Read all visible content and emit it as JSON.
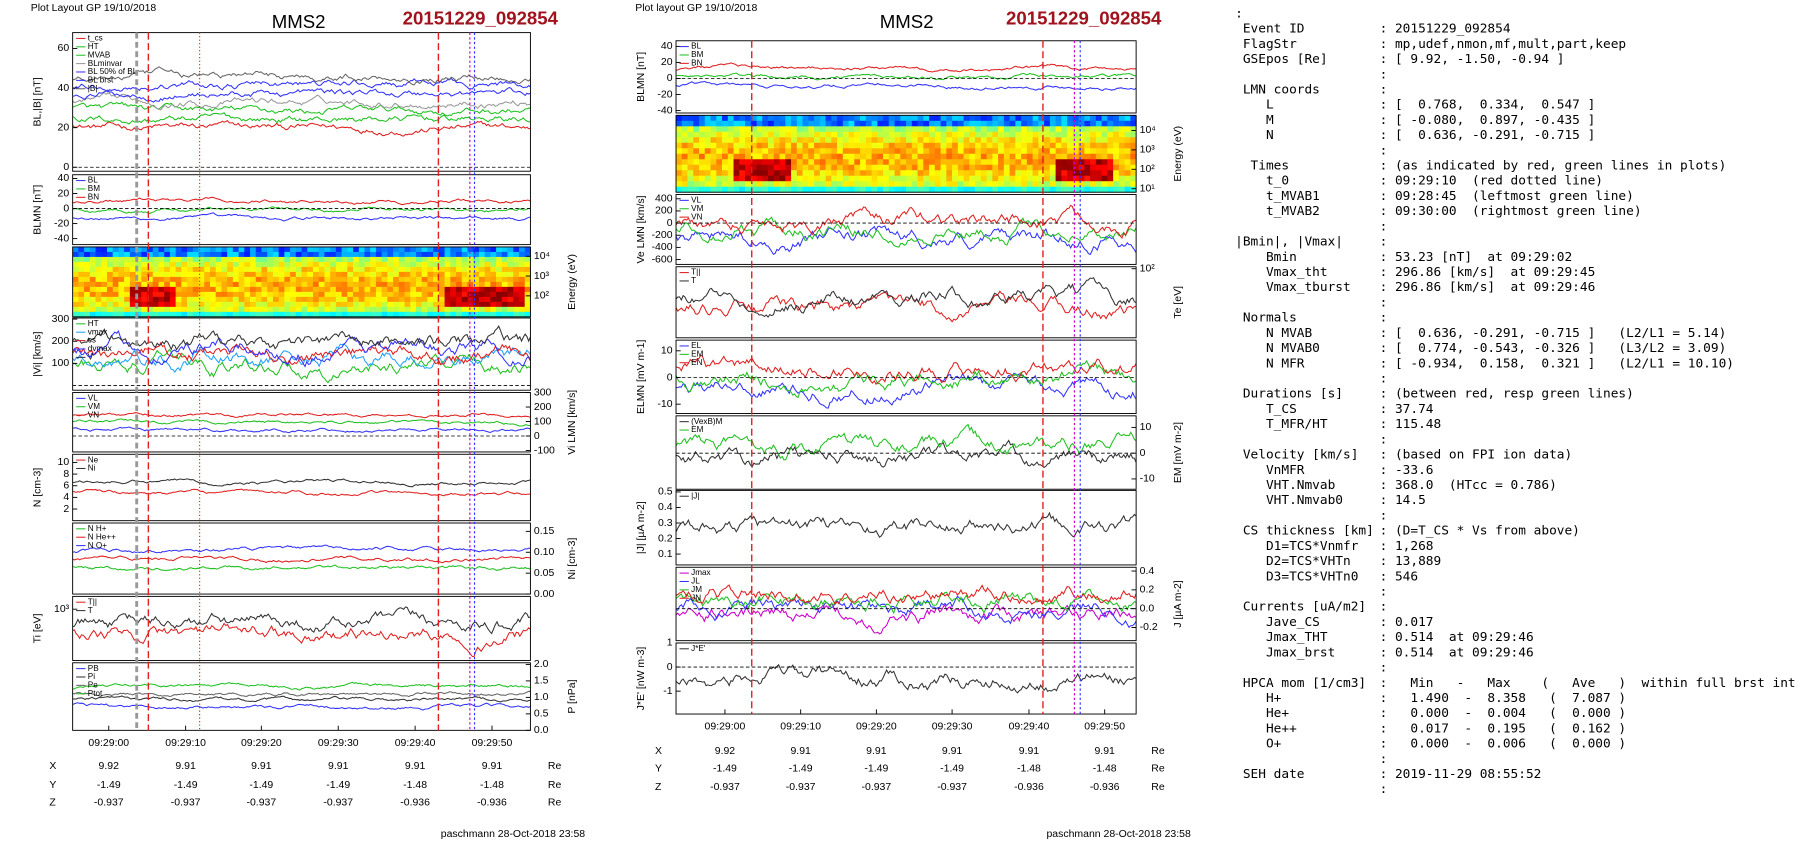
{
  "left": {
    "header": "Plot Layout GP 19/10/2018",
    "title": "MMS2",
    "event": "20151229_092854",
    "panels": [
      {
        "kind": "line",
        "side": "left",
        "ylabel": "BL,|B| [nT]",
        "ylim": [
          -2,
          68
        ],
        "yticks": [
          0,
          20,
          40,
          60
        ],
        "legend": [
          {
            "name": "t_cs",
            "color": "#e02020"
          },
          {
            "name": "HT",
            "color": "#20c020"
          },
          {
            "name": "MVAB",
            "color": "#20c020"
          },
          {
            "name": "BLminvar",
            "color": "#999999"
          },
          {
            "name": "BL 50% of BL",
            "color": "#3333ff"
          },
          {
            "name": "BL brst",
            "color": "#3333ff"
          },
          {
            "name": "|B|",
            "color": "#666666"
          }
        ]
      },
      {
        "kind": "line",
        "side": "left",
        "ylabel": "BLMN [nT]",
        "ylim": [
          -48,
          45
        ],
        "yticks": [
          -40,
          -20,
          0,
          20,
          40
        ],
        "legend": [
          {
            "name": "BL",
            "color": "#3333ff"
          },
          {
            "name": "BM",
            "color": "#20c020"
          },
          {
            "name": "BN",
            "color": "#e02020"
          }
        ]
      },
      {
        "kind": "spectrogram",
        "side": "right",
        "ylabel": "Energy (eV)",
        "ylim": [
          0.94,
          4.47
        ],
        "yticks": [
          {
            "value": 2,
            "label": "10²"
          },
          {
            "value": 3,
            "label": "10³"
          },
          {
            "value": 4,
            "label": "10⁴"
          }
        ],
        "legend": []
      },
      {
        "kind": "line",
        "side": "left",
        "ylabel": "|Vi| [km/s]",
        "ylim": [
          -21,
          305
        ],
        "yticks": [
          100,
          200,
          300
        ],
        "legend": [
          {
            "name": "HT",
            "color": "#20c020"
          },
          {
            "name": "vmax",
            "color": "#20a0ff"
          },
          {
            "name": "cs",
            "color": "#e02020"
          },
          {
            "name": "dvmax",
            "color": "#3333ff"
          },
          {
            "name": "V",
            "color": "#333333"
          }
        ]
      },
      {
        "kind": "line",
        "side": "right",
        "ylabel": "Vi LMN [km/s]",
        "ylim": [
          -110,
          300
        ],
        "yticks": [
          -100,
          0,
          100,
          200,
          300
        ],
        "legend": [
          {
            "name": "VL",
            "color": "#3333ff"
          },
          {
            "name": "VM",
            "color": "#20c020"
          },
          {
            "name": "VN",
            "color": "#e02020"
          }
        ]
      },
      {
        "kind": "line",
        "side": "left",
        "ylabel": "N [cm-3]",
        "ylim": [
          0,
          11.4
        ],
        "yticks": [
          2,
          4,
          6,
          8,
          10
        ],
        "legend": [
          {
            "name": "Ne",
            "color": "#e02020"
          },
          {
            "name": "Ni",
            "color": "#333333"
          }
        ]
      },
      {
        "kind": "line",
        "side": "right",
        "ylabel": "Ni [cm-3]",
        "ylim": [
          0,
          0.17
        ],
        "yticks": [
          {
            "value": 0,
            "label": "0.00"
          },
          0.05,
          {
            "value": 0.1,
            "label": "0.10"
          },
          0.15
        ],
        "legend": [
          {
            "name": "N H+",
            "color": "#20c020"
          },
          {
            "name": "N He++",
            "color": "#e02020"
          },
          {
            "name": "N O+",
            "color": "#3333ff"
          }
        ]
      },
      {
        "kind": "line",
        "side": "left",
        "ylabel": "Ti [eV]",
        "ylim": [
          2.2,
          3.2
        ],
        "yticks": [
          {
            "value": 3,
            "label": "10³"
          }
        ],
        "legend": [
          {
            "name": "T||",
            "color": "#e02020"
          },
          {
            "name": "T",
            "color": "#333333"
          }
        ]
      },
      {
        "kind": "line",
        "side": "right",
        "ylabel": "P [nPa]",
        "ylim": [
          0,
          2.05
        ],
        "yticks": [
          {
            "value": 0,
            "label": "0.0"
          },
          0.5,
          {
            "value": 1,
            "label": "1.0"
          },
          1.5,
          {
            "value": 2,
            "label": "2.0"
          }
        ],
        "legend": [
          {
            "name": "PB",
            "color": "#3333ff"
          },
          {
            "name": "Pi",
            "color": "#333333"
          },
          {
            "name": "Pe",
            "color": "#666666"
          },
          {
            "name": "Ptot",
            "color": "#20c020"
          }
        ]
      }
    ],
    "xticks": [
      "09:29:00",
      "09:29:10",
      "09:29:20",
      "09:29:30",
      "09:29:40",
      "09:29:50"
    ],
    "coords": [
      [
        "X",
        "9.92",
        "9.91",
        "9.91",
        "9.91",
        "9.91",
        "9.91",
        "Re"
      ],
      [
        "Y",
        "-1.49",
        "-1.49",
        "-1.49",
        "-1.49",
        "-1.48",
        "-1.48",
        "Re"
      ],
      [
        "Z",
        "-0.937",
        "-0.937",
        "-0.937",
        "-0.937",
        "-0.936",
        "-0.936",
        "Re"
      ]
    ],
    "footer": "paschmann 28-Oct-2018 23:58"
  },
  "middle": {
    "header": "Plot layout GP 19/10/2018",
    "title": "MMS2",
    "event": "20151229_092854",
    "panels": [
      {
        "kind": "line",
        "side": "left",
        "ylabel": "BLMN [nT]",
        "ylim": [
          -43,
          47
        ],
        "yticks": [
          -40,
          -20,
          0,
          20,
          40
        ],
        "legend": [
          {
            "name": "BL",
            "color": "#3333ff"
          },
          {
            "name": "BM",
            "color": "#20c020"
          },
          {
            "name": "BN",
            "color": "#e02020"
          }
        ]
      },
      {
        "kind": "spectrogram",
        "side": "right",
        "ylabel": "Energy (eV)",
        "ylim": [
          0.82,
          4.78
        ],
        "yticks": [
          {
            "value": 1,
            "label": "10¹"
          },
          {
            "value": 2,
            "label": "10²"
          },
          {
            "value": 3,
            "label": "10³"
          },
          {
            "value": 4,
            "label": "10⁴"
          }
        ],
        "legend": []
      },
      {
        "kind": "line",
        "side": "left",
        "ylabel": "Ve LMN [km/s]",
        "ylim": [
          -680,
          470
        ],
        "yticks": [
          -600,
          -400,
          -200,
          0,
          200,
          400
        ],
        "legend": [
          {
            "name": "VL",
            "color": "#3333ff"
          },
          {
            "name": "VM",
            "color": "#20c020"
          },
          {
            "name": "VN",
            "color": "#e02020"
          }
        ]
      },
      {
        "kind": "line",
        "side": "right",
        "ylabel": "Te [eV]",
        "ylim": [
          1.3,
          2.02
        ],
        "yticks": [
          {
            "value": 2,
            "label": "10²"
          }
        ],
        "legend": [
          {
            "name": "T||",
            "color": "#e02020"
          },
          {
            "name": "T",
            "color": "#333333"
          }
        ]
      },
      {
        "kind": "line",
        "side": "left",
        "ylabel": "ELMN [mV m-1]",
        "ylim": [
          -13.5,
          14
        ],
        "yticks": [
          -10,
          0,
          10
        ],
        "legend": [
          {
            "name": "EL",
            "color": "#3333ff"
          },
          {
            "name": "EM",
            "color": "#20c020"
          },
          {
            "name": "EN",
            "color": "#e02020"
          }
        ]
      },
      {
        "kind": "line",
        "side": "right",
        "ylabel": "EM [mV m-2]",
        "ylim": [
          -14,
          14.5
        ],
        "yticks": [
          -10,
          0,
          10
        ],
        "legend": [
          {
            "name": "(VexB)M",
            "color": "#333333"
          },
          {
            "name": "EM",
            "color": "#20c020"
          }
        ]
      },
      {
        "kind": "line",
        "side": "left",
        "ylabel": "|J| [µA m-2]",
        "ylim": [
          0.03,
          0.51
        ],
        "yticks": [
          0.1,
          0.2,
          0.3,
          0.4,
          0.5
        ],
        "legend": [
          {
            "name": "|J|",
            "color": "#333333"
          }
        ]
      },
      {
        "kind": "line",
        "side": "right",
        "ylabel": "J [µA m-2]",
        "ylim": [
          -0.34,
          0.44
        ],
        "yticks": [
          -0.2,
          {
            "value": 0,
            "label": "0.0"
          },
          0.2,
          0.4
        ],
        "legend": [
          {
            "name": "Jmax",
            "color": "#cc00cc"
          },
          {
            "name": "JL",
            "color": "#3333ff"
          },
          {
            "name": "JM",
            "color": "#20c020"
          },
          {
            "name": "JN",
            "color": "#e02020"
          }
        ]
      },
      {
        "kind": "line",
        "side": "left",
        "ylabel": "J*E' [nW m-3]",
        "ylim": [
          -1.95,
          1
        ],
        "yticks": [
          -1,
          0,
          1
        ],
        "legend": [
          {
            "name": "J*E'",
            "color": "#333333"
          }
        ]
      }
    ],
    "xticks": [
      "09:29:00",
      "09:29:10",
      "09:29:20",
      "09:29:30",
      "09:29:40",
      "09:29:50"
    ],
    "coords": [
      [
        "X",
        "9.92",
        "9.91",
        "9.91",
        "9.91",
        "9.91",
        "9.91",
        "Re"
      ],
      [
        "Y",
        "-1.49",
        "-1.49",
        "-1.49",
        "-1.49",
        "-1.48",
        "-1.48",
        "Re"
      ],
      [
        "Z",
        "-0.937",
        "-0.937",
        "-0.937",
        "-0.937",
        "-0.936",
        "-0.936",
        "Re"
      ]
    ],
    "footer": "paschmann 28-Oct-2018 23:58"
  },
  "info": {
    "lead": ":",
    "lines": [
      {
        "label": " Event ID",
        "value": ": 20151229_092854"
      },
      {
        "label": " FlagStr",
        "value": ": mp,udef,nmon,mf,mult,part,keep"
      },
      {
        "label": " GSEpos [Re]",
        "value": ": [ 9.92, -1.50, -0.94 ]"
      },
      {
        "value": ":"
      },
      {
        "label": " LMN coords",
        "value": ":"
      },
      {
        "label": "    L",
        "value": ": [  0.768,  0.334,  0.547 ]"
      },
      {
        "label": "    M",
        "value": ": [ -0.080,  0.897, -0.435 ]"
      },
      {
        "label": "    N",
        "value": ": [  0.636, -0.291, -0.715 ]"
      },
      {
        "value": ":"
      },
      {
        "label": "  Times",
        "value": ": (as indicated by red, green lines in plots)"
      },
      {
        "label": "    t_0",
        "value": ": 09:29:10  (red dotted line)"
      },
      {
        "label": "    t_MVAB1",
        "value": ": 09:28:45  (leftmost green line)"
      },
      {
        "label": "    t_MVAB2",
        "value": ": 09:30:00  (rightmost green line)"
      },
      {
        "value": ":"
      },
      {
        "label": "|Bmin|, |Vmax|",
        "value": ":"
      },
      {
        "label": "    Bmin",
        "value": ": 53.23 [nT]  at 09:29:02"
      },
      {
        "label": "    Vmax_tht",
        "value": ": 296.86 [km/s]  at 09:29:45"
      },
      {
        "label": "    Vmax_tburst",
        "value": ": 296.86 [km/s]  at 09:29:46"
      },
      {
        "value": ":"
      },
      {
        "label": " Normals",
        "value": ":"
      },
      {
        "label": "    N MVAB",
        "value": ": [  0.636, -0.291, -0.715 ]   (L2/L1 = 5.14)"
      },
      {
        "label": "    N MVAB0",
        "value": ": [  0.774, -0.543, -0.326 ]   (L3/L2 = 3.09)"
      },
      {
        "label": "    N MFR",
        "value": ": [ -0.934,  0.158,  0.321 ]   (L2/L1 = 10.10)"
      },
      {
        "value": ":"
      },
      {
        "label": " Durations [s]",
        "value": ": (between red, resp green lines)"
      },
      {
        "label": "    T_CS",
        "value": ": 37.74"
      },
      {
        "label": "    T_MFR/HT",
        "value": ": 115.48"
      },
      {
        "value": ":"
      },
      {
        "label": " Velocity [km/s]",
        "value": ": (based on FPI ion data)"
      },
      {
        "label": "    VnMFR",
        "value": ": -33.6"
      },
      {
        "label": "    VHT.Nmvab",
        "value": ": 368.0  (HTcc = 0.786)"
      },
      {
        "label": "    VHT.Nmvab0",
        "value": ": 14.5"
      },
      {
        "value": ":"
      },
      {
        "label": " CS thickness [km]",
        "value": ": (D=T_CS * Vs from above)"
      },
      {
        "label": "    D1=TCS*Vnmfr",
        "value": ": 1,268"
      },
      {
        "label": "    D2=TCS*VHTn",
        "value": ": 13,889"
      },
      {
        "label": "    D3=TCS*VHTn0",
        "value": ": 546"
      },
      {
        "value": ":"
      },
      {
        "label": " Currents [uA/m2]",
        "value": ":"
      },
      {
        "label": "    Jave_CS",
        "value": ": 0.017"
      },
      {
        "label": "    Jmax_THT",
        "value": ": 0.514  at 09:29:46"
      },
      {
        "label": "    Jmax_brst",
        "value": ": 0.514  at 09:29:46"
      },
      {
        "value": ":"
      },
      {
        "label": " HPCA mom [1/cm3]",
        "value": ":   Min   -   Max    (   Ave   )  within full brst int"
      },
      {
        "label": "    H+",
        "value": ":   1.490  -  8.358   (  7.087 )"
      },
      {
        "label": "    He+",
        "value": ":   0.000  -  0.004   (  0.000 )"
      },
      {
        "label": "    He++",
        "value": ":   0.017  -  0.195   (  0.162 )"
      },
      {
        "label": "    O+",
        "value": ":   0.000  -  0.006   (  0.000 )"
      },
      {
        "value": ":"
      },
      {
        "label": " SEH date",
        "value": ": 2019-11-29 08:55:52"
      },
      {
        "value": ":"
      }
    ]
  }
}
